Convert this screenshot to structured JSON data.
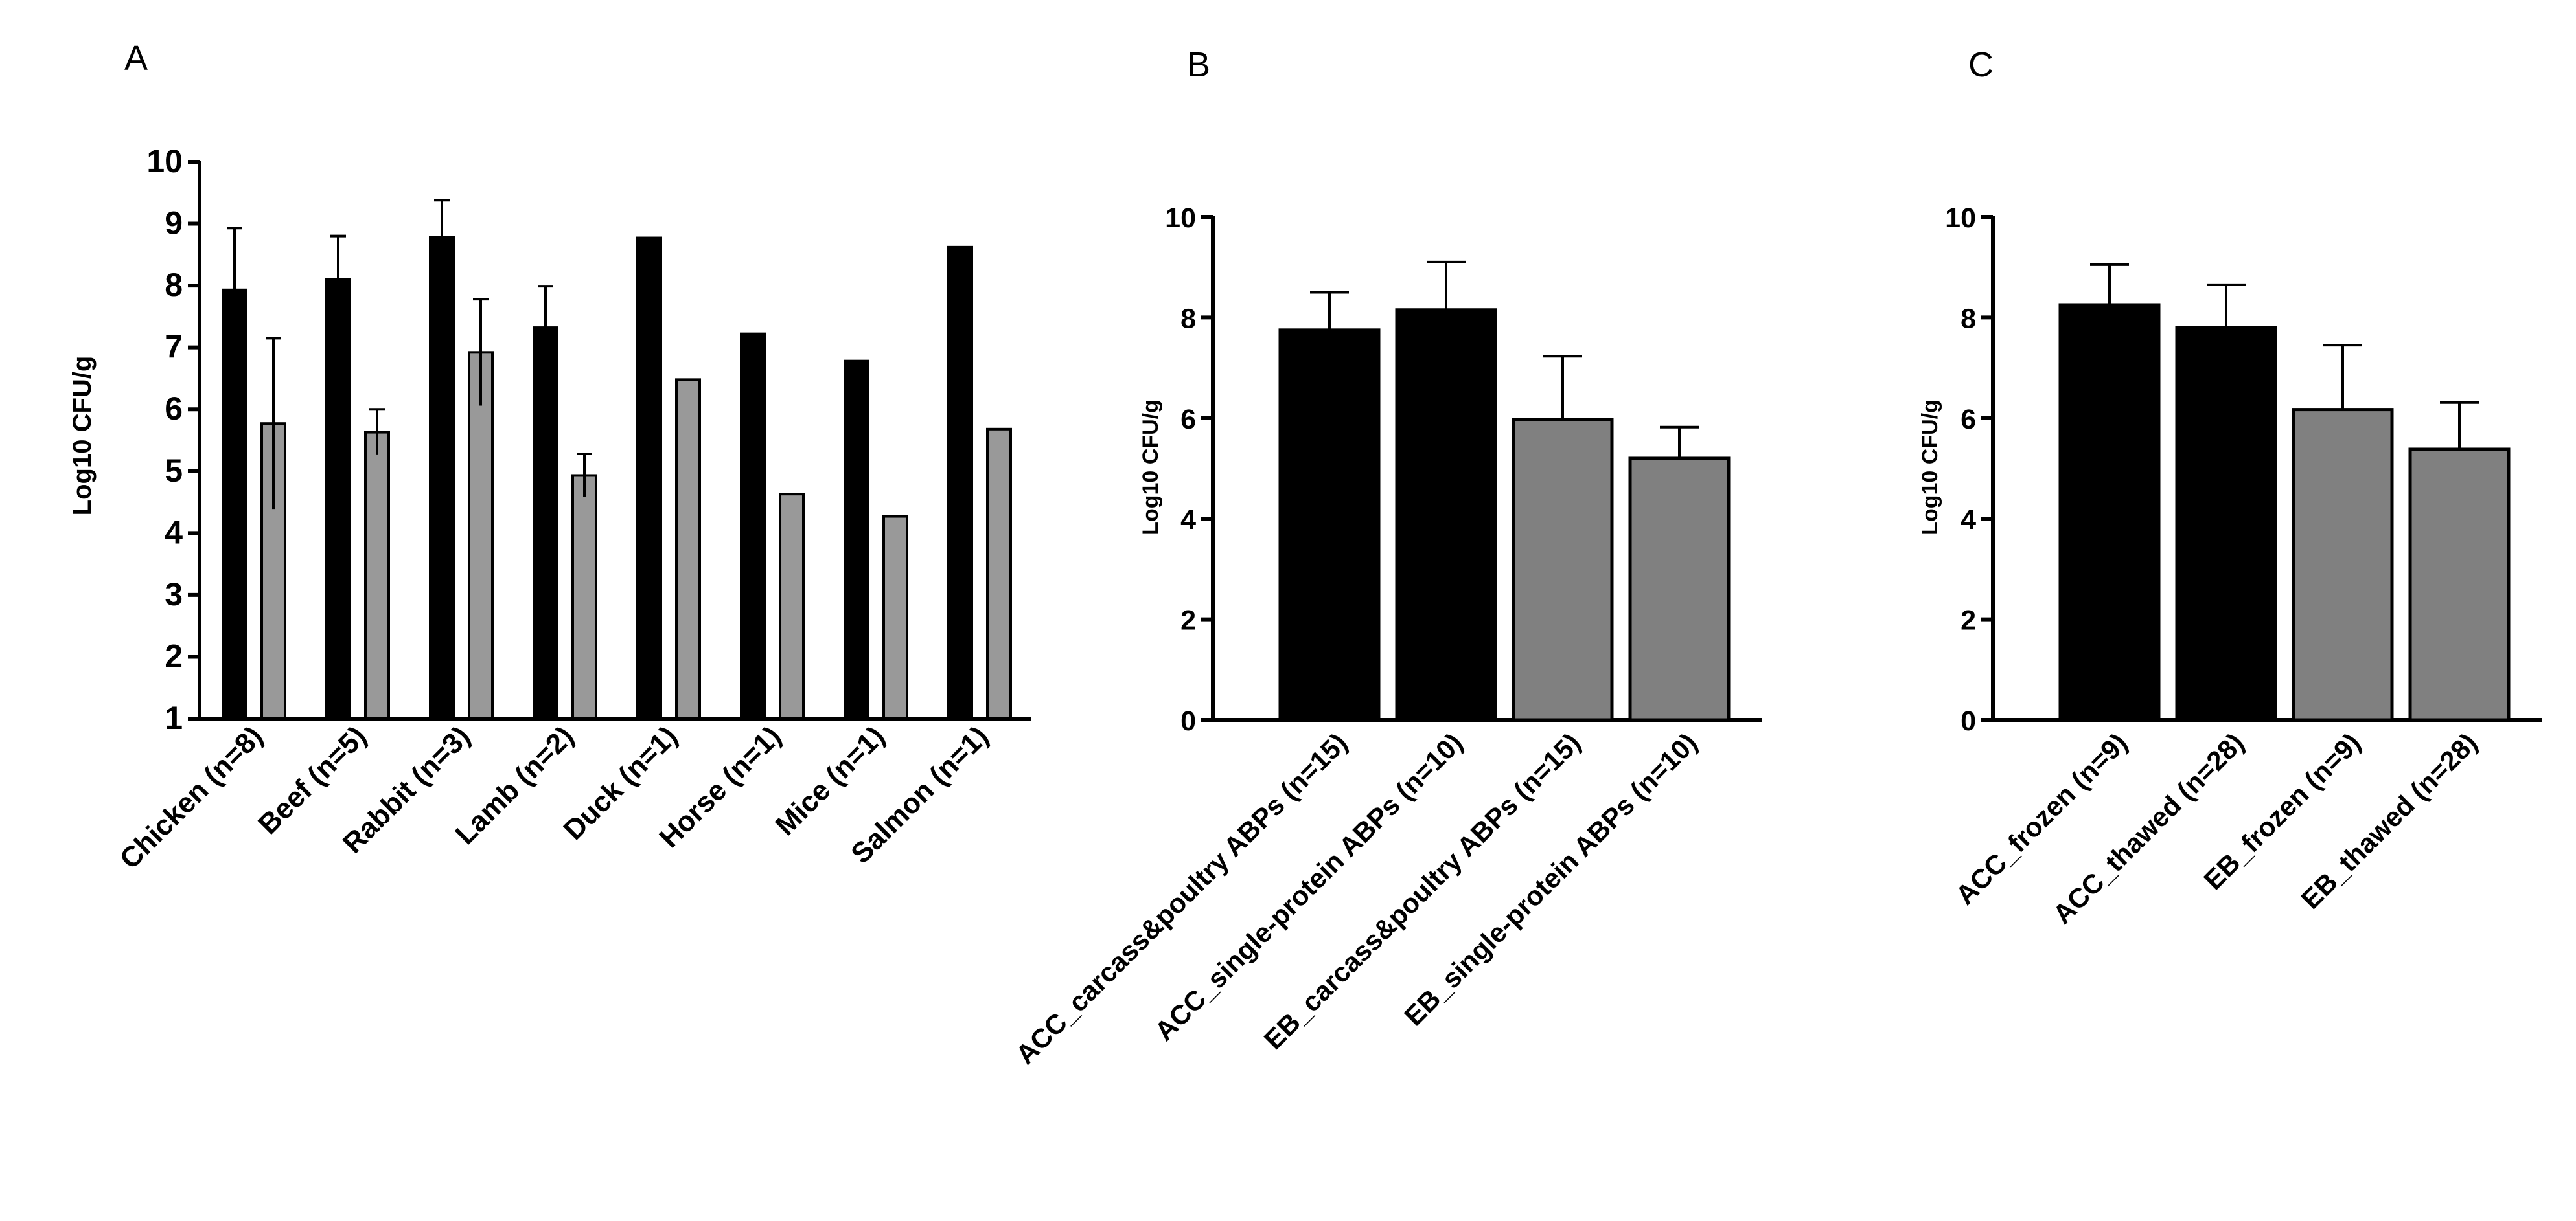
{
  "chart_data": [
    {
      "panel": "A",
      "type": "bar",
      "ylabel": "Log10 CFU/g",
      "ylim": [
        1,
        10
      ],
      "yticks": [
        1,
        2,
        3,
        4,
        5,
        6,
        7,
        8,
        9,
        10
      ],
      "categories": [
        "Chicken (n=8)",
        "Beef (n=5)",
        "Rabbit (n=3)",
        "Lamb (n=2)",
        "Duck (n=1)",
        "Horse (n=1)",
        "Mice (n=1)",
        "Salmon (n=1)"
      ],
      "series": [
        {
          "name": "black",
          "color": "#000000",
          "values": [
            7.93,
            8.1,
            8.78,
            7.32,
            8.77,
            7.22,
            6.78,
            8.62
          ],
          "err": [
            1.0,
            0.7,
            0.6,
            0.67,
            0,
            0,
            0,
            0
          ],
          "errDir": "up"
        },
        {
          "name": "gray",
          "color": "#999999",
          "values": [
            5.77,
            5.63,
            6.92,
            4.93,
            6.48,
            4.63,
            4.27,
            5.68
          ],
          "err": [
            1.38,
            0.37,
            0.86,
            0.35,
            0,
            0,
            0,
            0
          ],
          "errDir": "both"
        }
      ]
    },
    {
      "panel": "B",
      "type": "bar",
      "ylabel": "Log10 CFU/g",
      "ylim": [
        0,
        10
      ],
      "yticks": [
        0,
        2,
        4,
        6,
        8,
        10
      ],
      "categories": [
        "ACC_carcass&poultry ABPs (n=15)",
        "ACC_single-protein ABPs  (n=10)",
        "EB_carcass&poultry ABPs (n=15)",
        "EB_single-protein ABPs (n=10)"
      ],
      "values": [
        7.75,
        8.15,
        5.97,
        5.2
      ],
      "err": [
        0.75,
        0.95,
        1.26,
        0.62
      ],
      "colors": [
        "#000000",
        "#000000",
        "#808080",
        "#808080"
      ]
    },
    {
      "panel": "C",
      "type": "bar",
      "ylabel": "Log10 CFU/g",
      "ylim": [
        0,
        10
      ],
      "yticks": [
        0,
        2,
        4,
        6,
        8,
        10
      ],
      "categories": [
        "ACC_frozen (n=9)",
        "ACC_thawed (n=28)",
        "EB_frozen (n=9)",
        "EB_thawed (n=28)"
      ],
      "values": [
        8.25,
        7.8,
        6.17,
        5.38
      ],
      "err": [
        0.8,
        0.85,
        1.28,
        0.93
      ],
      "colors": [
        "#000000",
        "#000000",
        "#808080",
        "#808080"
      ]
    }
  ]
}
